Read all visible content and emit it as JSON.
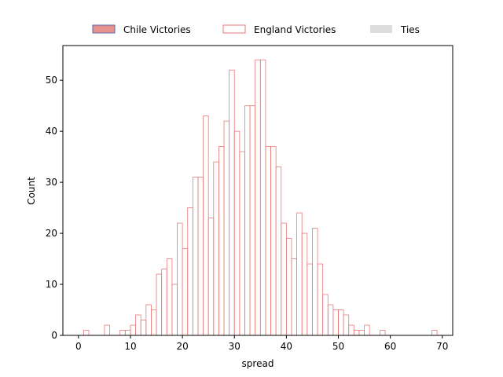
{
  "chart_data": {
    "type": "bar",
    "title": "",
    "xlabel": "spread",
    "ylabel": "Count",
    "xlim": [
      -3,
      72
    ],
    "ylim": [
      0,
      56.8
    ],
    "xticks": [
      0,
      10,
      20,
      30,
      40,
      50,
      60,
      70
    ],
    "yticks": [
      0,
      10,
      20,
      30,
      40,
      50
    ],
    "bin_width": 1,
    "legend_position": "top-center",
    "grid": false,
    "colors": {
      "chile_fill": "#e8928e",
      "chile_edge": "#5a6ab0",
      "england_edge": "#e87a78",
      "ties": "#dddddd"
    },
    "series": [
      {
        "name": "Chile Victories",
        "bins": []
      },
      {
        "name": "England Victories",
        "bins": [
          [
            1,
            1
          ],
          [
            5,
            2
          ],
          [
            8,
            1
          ],
          [
            9,
            1
          ],
          [
            10,
            2
          ],
          [
            11,
            4
          ],
          [
            12,
            3
          ],
          [
            13,
            6
          ],
          [
            14,
            5
          ],
          [
            15,
            12
          ],
          [
            16,
            13
          ],
          [
            17,
            15
          ],
          [
            18,
            10
          ],
          [
            19,
            22
          ],
          [
            20,
            17
          ],
          [
            21,
            25
          ],
          [
            22,
            31
          ],
          [
            23,
            31
          ],
          [
            24,
            43
          ],
          [
            25,
            23
          ],
          [
            26,
            34
          ],
          [
            27,
            37
          ],
          [
            28,
            42
          ],
          [
            29,
            52
          ],
          [
            30,
            40
          ],
          [
            31,
            36
          ],
          [
            32,
            45
          ],
          [
            33,
            45
          ],
          [
            34,
            54
          ],
          [
            35,
            54
          ],
          [
            36,
            37
          ],
          [
            37,
            37
          ],
          [
            38,
            33
          ],
          [
            39,
            22
          ],
          [
            40,
            19
          ],
          [
            41,
            15
          ],
          [
            42,
            24
          ],
          [
            43,
            20
          ],
          [
            44,
            14
          ],
          [
            45,
            21
          ],
          [
            46,
            14
          ],
          [
            47,
            8
          ],
          [
            48,
            6
          ],
          [
            49,
            5
          ],
          [
            50,
            5
          ],
          [
            51,
            4
          ],
          [
            52,
            2
          ],
          [
            53,
            1
          ],
          [
            54,
            1
          ],
          [
            55,
            2
          ],
          [
            58,
            1
          ],
          [
            68,
            1
          ]
        ]
      },
      {
        "name": "Ties",
        "bins": []
      }
    ]
  }
}
